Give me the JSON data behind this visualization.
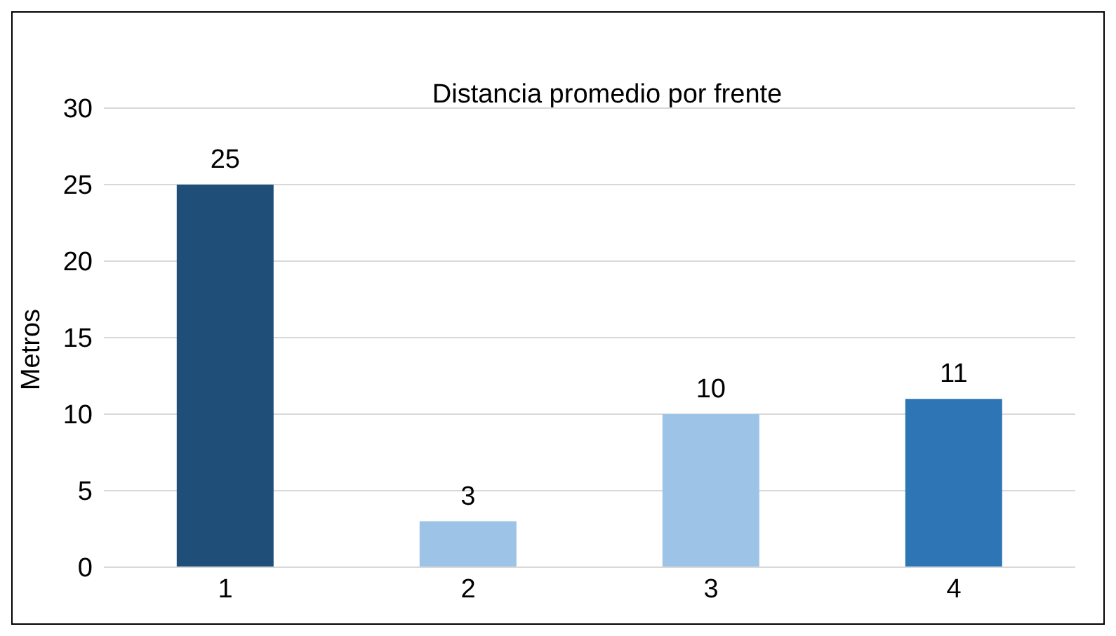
{
  "chart_data": {
    "type": "bar",
    "title": "Distancia promedio por frente",
    "ylabel": "Metros",
    "categories": [
      "1",
      "2",
      "3",
      "4"
    ],
    "values": [
      25,
      3,
      10,
      11
    ],
    "colors": [
      "#1f4e79",
      "#9dc3e6",
      "#9dc3e6",
      "#2e75b6"
    ],
    "ylim": [
      0,
      30
    ],
    "yticks": [
      0,
      5,
      10,
      15,
      20,
      25,
      30
    ],
    "grid": "y",
    "data_labels": true
  }
}
